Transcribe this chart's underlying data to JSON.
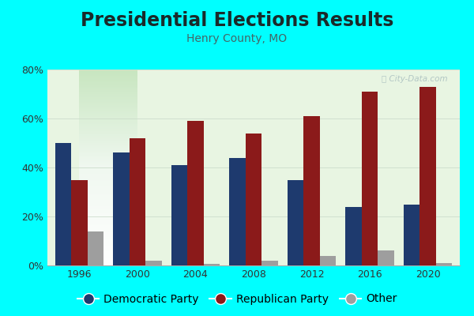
{
  "title": "Presidential Elections Results",
  "subtitle": "Henry County, MO",
  "years": [
    1996,
    2000,
    2004,
    2008,
    2012,
    2016,
    2020
  ],
  "democratic": [
    50,
    46,
    41,
    44,
    35,
    24,
    25
  ],
  "republican": [
    35,
    52,
    59,
    54,
    61,
    71,
    73
  ],
  "other": [
    14,
    2,
    0.5,
    2,
    4,
    6,
    1
  ],
  "dem_color": "#1e3a6e",
  "rep_color": "#8b1a1a",
  "other_color": "#9e9e9e",
  "outer_bg": "#00ffff",
  "ylim": [
    0,
    80
  ],
  "yticks": [
    0,
    20,
    40,
    60,
    80
  ],
  "ytick_labels": [
    "0%",
    "20%",
    "40%",
    "60%",
    "80%"
  ],
  "bar_width": 0.28,
  "title_fontsize": 17,
  "subtitle_fontsize": 10,
  "legend_fontsize": 10,
  "watermark": "City-Data.com"
}
